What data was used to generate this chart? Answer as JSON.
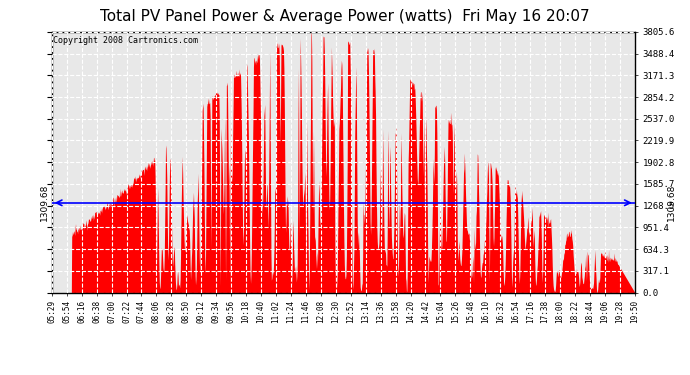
{
  "title": "Total PV Panel Power & Average Power (watts)  Fri May 16 20:07",
  "copyright": "Copyright 2008 Cartronics.com",
  "avg_power": 1309.68,
  "y_max": 3805.6,
  "y_ticks": [
    0.0,
    317.1,
    634.3,
    951.4,
    1268.5,
    1585.7,
    1902.8,
    2219.9,
    2537.0,
    2854.2,
    3171.3,
    3488.4,
    3805.6
  ],
  "y_tick_labels": [
    "0.0",
    "317.1",
    "634.3",
    "951.4",
    "1268.5",
    "1585.7",
    "1902.8",
    "2219.9",
    "2537.0",
    "2854.2",
    "3171.3",
    "3488.4",
    "3805.6"
  ],
  "background_color": "#e8e8e8",
  "fill_color": "#ff0000",
  "line_color": "#0000ff",
  "grid_color": "#ffffff",
  "border_color": "#000000",
  "title_fontsize": 11,
  "copyright_fontsize": 6,
  "x_tick_labels": [
    "05:29",
    "05:54",
    "06:16",
    "06:38",
    "07:00",
    "07:22",
    "07:44",
    "08:06",
    "08:28",
    "08:50",
    "09:12",
    "09:34",
    "09:56",
    "10:18",
    "10:40",
    "11:02",
    "11:24",
    "11:46",
    "12:08",
    "12:30",
    "12:52",
    "13:14",
    "13:36",
    "13:58",
    "14:20",
    "14:42",
    "15:04",
    "15:26",
    "15:48",
    "16:10",
    "16:32",
    "16:54",
    "17:16",
    "17:38",
    "18:00",
    "18:22",
    "18:44",
    "19:06",
    "19:28",
    "19:50"
  ]
}
